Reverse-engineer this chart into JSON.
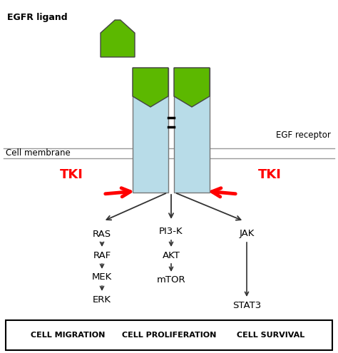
{
  "figsize": [
    4.74,
    4.95
  ],
  "dpi": 100,
  "bg_color": "#ffffff",
  "receptor_color": "#b8dce8",
  "ligand_color": "#5cb800",
  "receptor_border": "#777777",
  "tki_color": "#ff0000",
  "arrow_color": "#333333",
  "membrane_color": "#999999",
  "title_text": "EGFR ligand",
  "egf_receptor_text": "EGF receptor",
  "cell_membrane_text": "Cell membrane",
  "tki_text": "TKI",
  "pathway_nodes_left": [
    "RAS",
    "RAF",
    "MEK",
    "ERK"
  ],
  "pathway_nodes_mid": [
    "PI3-K",
    "AKT",
    "mTOR"
  ],
  "pathway_nodes_right": [
    "JAK",
    "STAT3"
  ],
  "bottom_labels": [
    "CELL MIGRATION",
    "CELL PROLIFERATION",
    "CELL SURVIVAL"
  ]
}
